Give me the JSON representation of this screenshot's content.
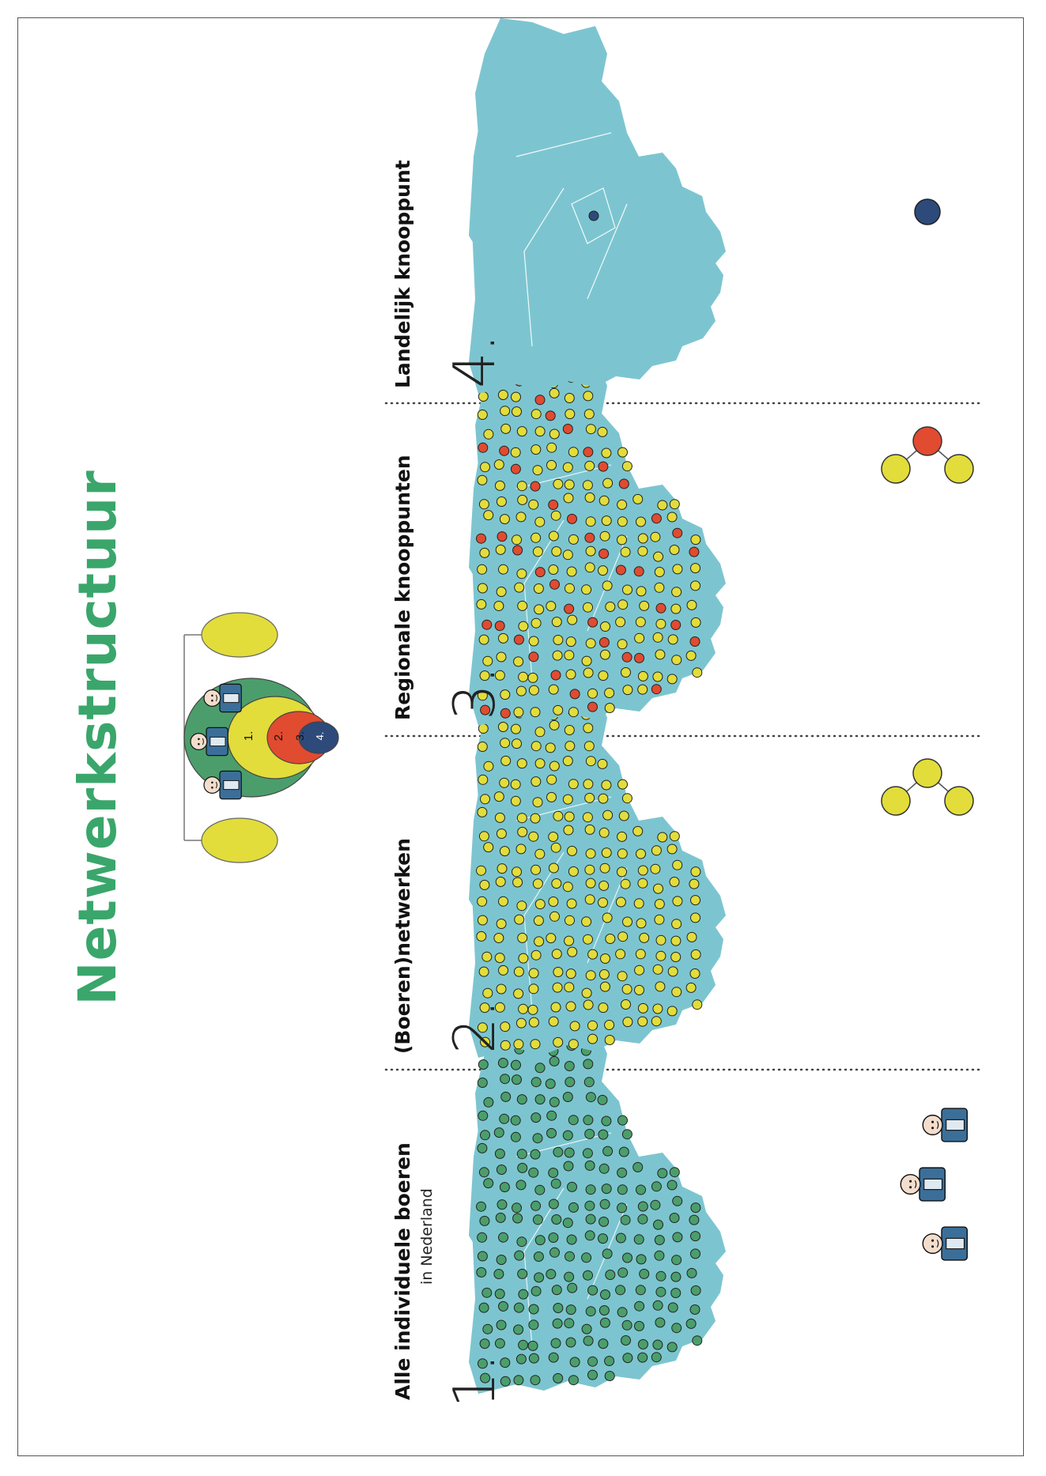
{
  "title": "Netwerkstructuur",
  "colors": {
    "title": "#3aa66b",
    "land": "#7cc5d0",
    "farmer": "#4b9e6b",
    "network": "#e2dd3a",
    "regional": "#e14b30",
    "national": "#2e4a7a"
  },
  "hierarchy": {
    "labels": [
      "1.",
      "2.",
      "3.",
      "4."
    ]
  },
  "panels": [
    {
      "number": "1.",
      "heading": "Alle individuele boeren",
      "subheading": "in Nederland",
      "dot_color": "farmer"
    },
    {
      "number": "2.",
      "heading": "(Boeren)netwerken",
      "subheading": "",
      "dot_color": "network"
    },
    {
      "number": "3.",
      "heading": "Regionale knooppunten",
      "subheading": "",
      "dot_color": "network"
    },
    {
      "number": "4.",
      "heading": "Landelijk knooppunt",
      "subheading": "",
      "dot_color": "national"
    }
  ]
}
